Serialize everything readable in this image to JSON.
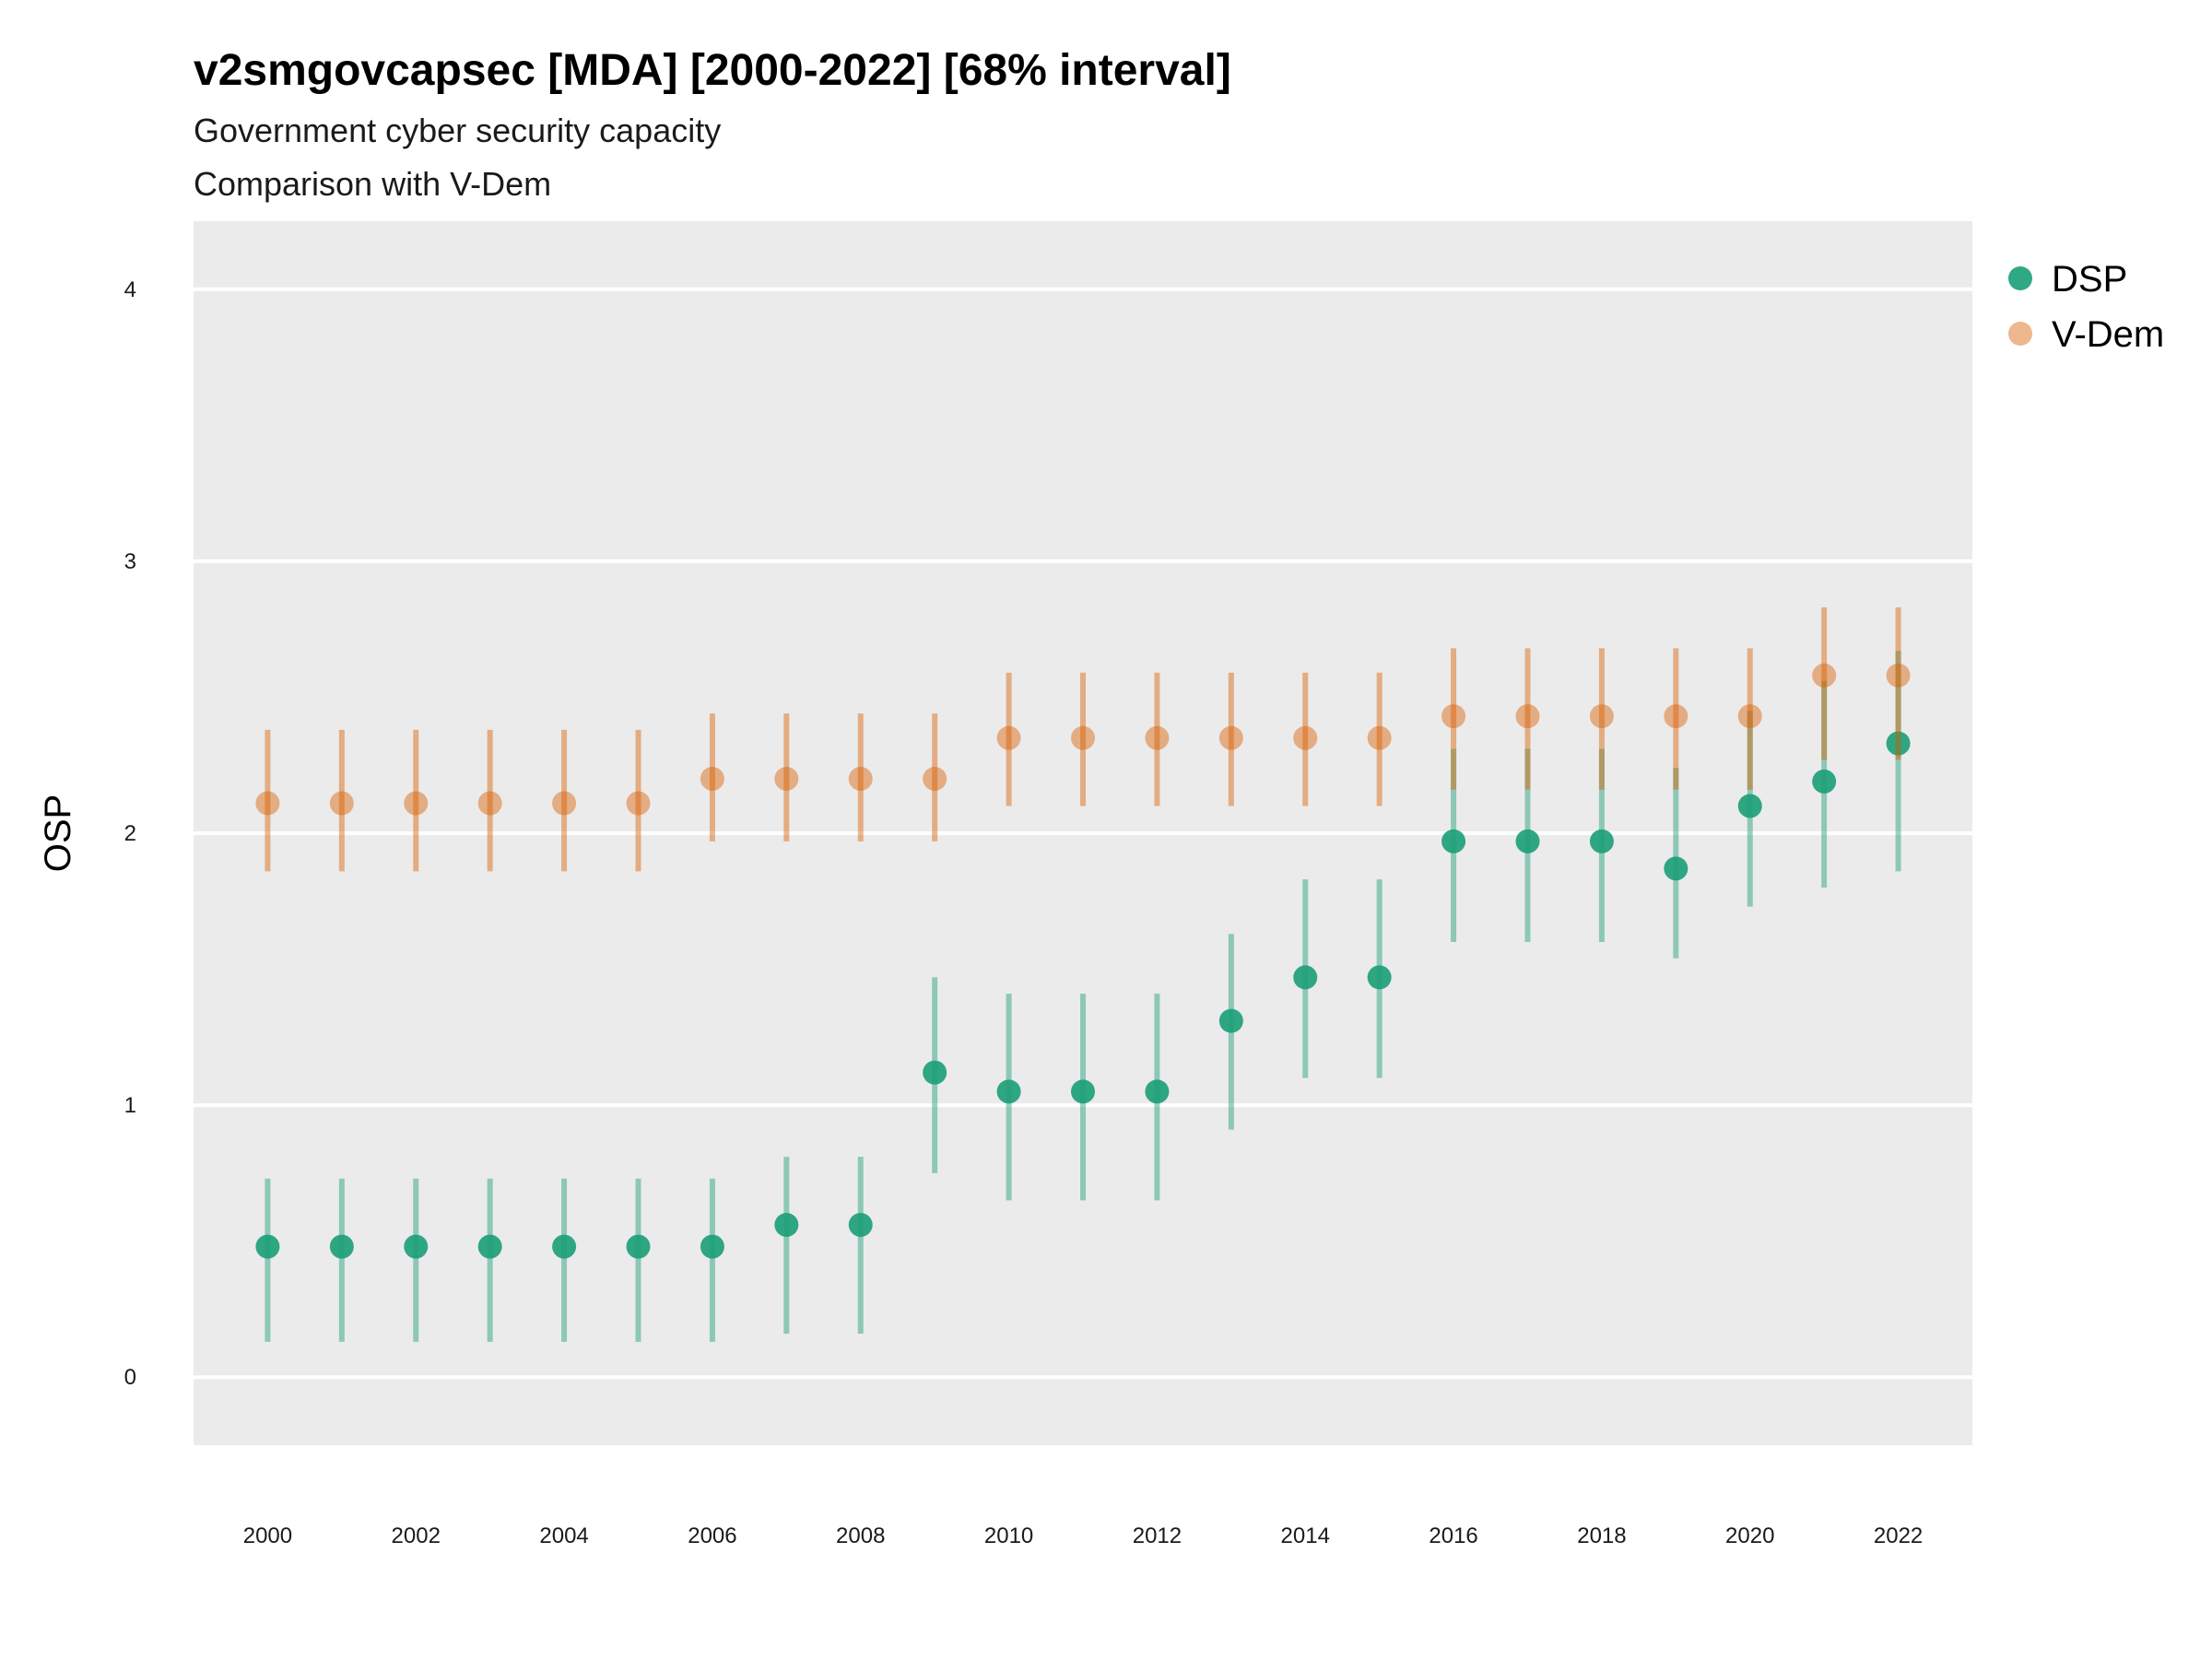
{
  "chart_data": {
    "type": "scatter",
    "title": "v2smgovcapsec [MDA] [2000-2022] [68% interval]",
    "subtitle": "Government cyber security capacity",
    "subtitle2": "Comparison with V-Dem",
    "xlabel": "",
    "ylabel": "OSP",
    "ylim": [
      -0.25,
      4.25
    ],
    "xlim": [
      1999,
      2023
    ],
    "yticks": [
      0,
      1,
      2,
      3,
      4
    ],
    "xticks": [
      2000,
      2002,
      2004,
      2006,
      2008,
      2010,
      2012,
      2014,
      2016,
      2018,
      2020,
      2022
    ],
    "grid": true,
    "legend_position": "right",
    "x": [
      2000,
      2001,
      2002,
      2003,
      2004,
      2005,
      2006,
      2007,
      2008,
      2009,
      2010,
      2011,
      2012,
      2013,
      2014,
      2015,
      2016,
      2017,
      2018,
      2019,
      2020,
      2021,
      2022
    ],
    "series": [
      {
        "name": "DSP",
        "color": "#1b9e77",
        "values": [
          0.48,
          0.48,
          0.48,
          0.48,
          0.48,
          0.48,
          0.48,
          0.56,
          0.56,
          1.12,
          1.05,
          1.05,
          1.05,
          1.31,
          1.47,
          1.47,
          1.97,
          1.97,
          1.97,
          1.87,
          2.1,
          2.19,
          2.33
        ],
        "lower": [
          0.13,
          0.13,
          0.13,
          0.13,
          0.13,
          0.13,
          0.13,
          0.16,
          0.16,
          0.75,
          0.65,
          0.65,
          0.65,
          0.91,
          1.1,
          1.1,
          1.6,
          1.6,
          1.6,
          1.54,
          1.73,
          1.8,
          1.86
        ],
        "upper": [
          0.73,
          0.73,
          0.73,
          0.73,
          0.73,
          0.73,
          0.73,
          0.81,
          0.81,
          1.47,
          1.41,
          1.41,
          1.41,
          1.63,
          1.83,
          1.83,
          2.31,
          2.31,
          2.31,
          2.24,
          2.45,
          2.56,
          2.67
        ]
      },
      {
        "name": "V-Dem",
        "color": "#d95f02",
        "values": [
          2.11,
          2.11,
          2.11,
          2.11,
          2.11,
          2.11,
          2.2,
          2.2,
          2.2,
          2.2,
          2.35,
          2.35,
          2.35,
          2.35,
          2.35,
          2.35,
          2.43,
          2.43,
          2.43,
          2.43,
          2.43,
          2.58,
          2.58
        ],
        "lower": [
          1.86,
          1.86,
          1.86,
          1.86,
          1.86,
          1.86,
          1.97,
          1.97,
          1.97,
          1.97,
          2.1,
          2.1,
          2.1,
          2.1,
          2.1,
          2.1,
          2.16,
          2.16,
          2.16,
          2.16,
          2.16,
          2.27,
          2.27
        ],
        "upper": [
          2.38,
          2.38,
          2.38,
          2.38,
          2.38,
          2.38,
          2.44,
          2.44,
          2.44,
          2.44,
          2.59,
          2.59,
          2.59,
          2.59,
          2.59,
          2.59,
          2.68,
          2.68,
          2.68,
          2.68,
          2.68,
          2.83,
          2.83
        ]
      }
    ]
  }
}
